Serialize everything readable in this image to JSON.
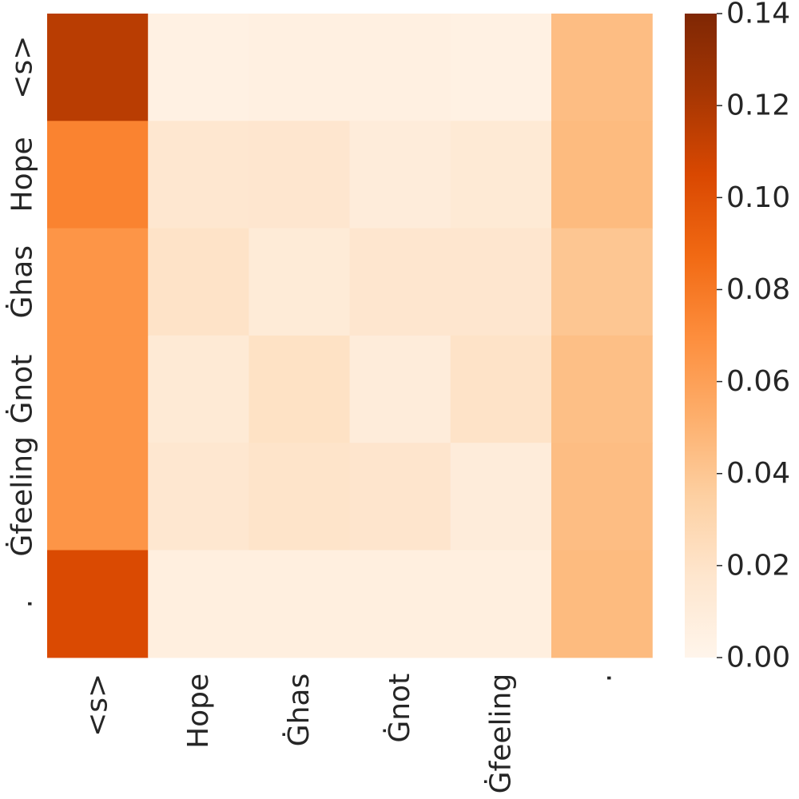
{
  "chart_data": {
    "type": "heatmap",
    "title": "",
    "xlabel": "",
    "ylabel": "",
    "x_labels": [
      "<s>",
      "Hope",
      "Ġhas",
      "Ġnot",
      "Ġfeeling",
      "."
    ],
    "y_labels": [
      "<s>",
      "Hope",
      "Ġhas",
      "Ġnot",
      "Ġfeeling",
      "."
    ],
    "values": [
      [
        0.116,
        0.005,
        0.006,
        0.006,
        0.005,
        0.045
      ],
      [
        0.075,
        0.016,
        0.017,
        0.01,
        0.013,
        0.046
      ],
      [
        0.066,
        0.02,
        0.012,
        0.017,
        0.017,
        0.04
      ],
      [
        0.066,
        0.013,
        0.021,
        0.01,
        0.02,
        0.044
      ],
      [
        0.066,
        0.016,
        0.019,
        0.018,
        0.01,
        0.045
      ],
      [
        0.104,
        0.007,
        0.007,
        0.007,
        0.007,
        0.046
      ]
    ],
    "colorbar": {
      "min": 0.0,
      "max": 0.14,
      "ticks": [
        "0.00",
        "0.02",
        "0.04",
        "0.06",
        "0.08",
        "0.10",
        "0.12",
        "0.14"
      ],
      "colormap": "Oranges"
    },
    "grid": false,
    "legend": "colorbar-right"
  }
}
